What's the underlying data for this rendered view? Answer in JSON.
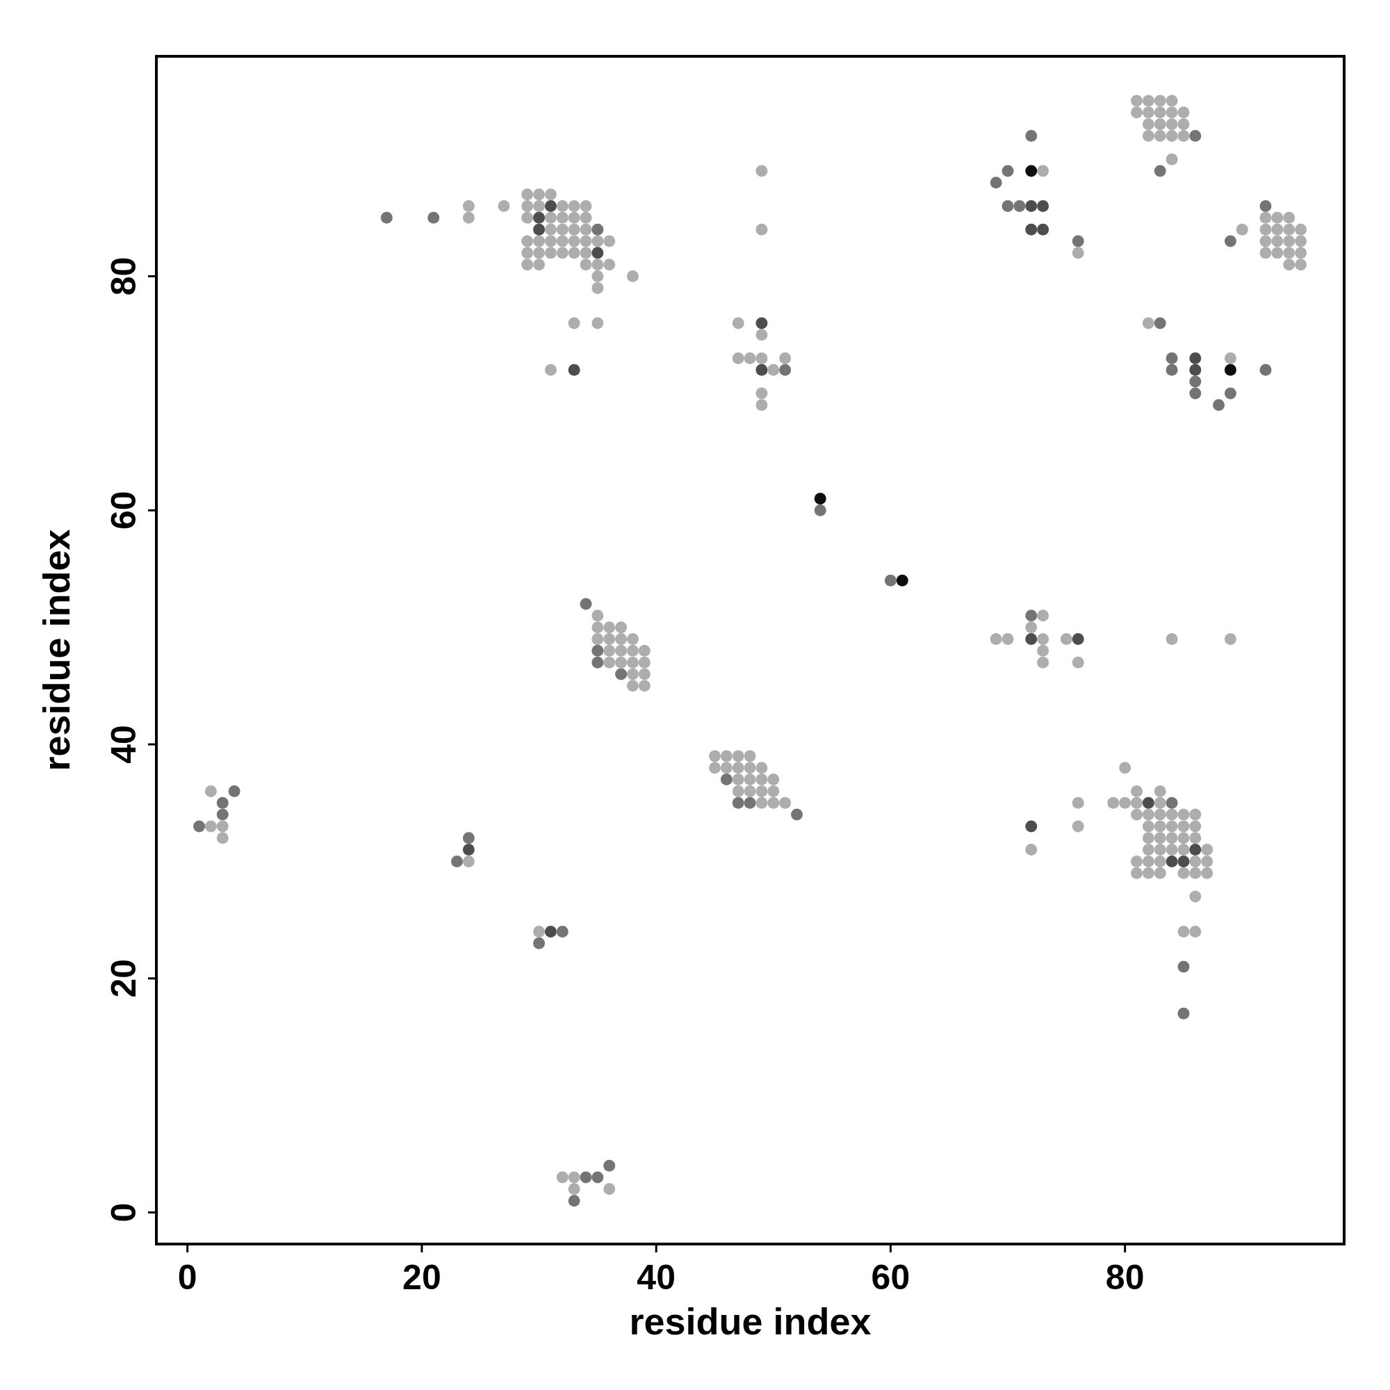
{
  "chart_data": {
    "type": "scatter",
    "xlabel": "residue index",
    "ylabel": "residue index",
    "xlim": [
      -2.65,
      98.7
    ],
    "ylim": [
      -2.7,
      98.8
    ],
    "xticks": [
      0,
      20,
      40,
      60,
      80
    ],
    "yticks": [
      0,
      20,
      40,
      60,
      80
    ],
    "grid": false,
    "marker": "circle",
    "series": [
      {
        "color": "#adadad",
        "x": [
          2,
          2,
          3,
          3,
          24,
          30,
          32,
          33,
          33,
          36,
          29,
          30,
          31,
          24,
          27,
          29,
          30,
          32,
          33,
          34,
          24,
          29,
          31,
          32,
          33,
          34,
          31,
          32,
          33,
          34,
          29,
          30,
          31,
          32,
          33,
          34,
          35,
          36,
          29,
          30,
          31,
          32,
          33,
          34,
          29,
          30,
          34,
          35,
          36,
          35,
          38,
          35,
          33,
          35,
          31,
          49,
          49,
          47,
          49,
          47,
          48,
          49,
          51,
          50,
          49,
          49,
          73,
          76,
          81,
          82,
          83,
          84,
          81,
          82,
          83,
          84,
          85,
          82,
          83,
          84,
          85,
          82,
          83,
          84,
          85,
          84,
          92,
          93,
          94,
          90,
          92,
          93,
          94,
          95,
          92,
          93,
          94,
          95,
          92,
          93,
          94,
          95,
          94,
          95,
          82,
          89,
          35,
          35,
          36,
          37,
          35,
          36,
          37,
          38,
          36,
          37,
          38,
          39,
          36,
          37,
          38,
          39,
          38,
          39,
          38,
          39,
          45,
          46,
          47,
          48,
          45,
          46,
          47,
          48,
          49,
          47,
          48,
          49,
          50,
          47,
          48,
          49,
          50,
          49,
          50,
          51,
          73,
          72,
          69,
          70,
          73,
          75,
          84,
          89,
          73,
          73,
          76,
          80,
          81,
          83,
          79,
          80,
          81,
          83,
          76,
          76,
          72,
          81,
          82,
          83,
          84,
          85,
          86,
          82,
          83,
          84,
          85,
          86,
          82,
          83,
          84,
          85,
          86,
          82,
          83,
          84,
          85,
          87,
          81,
          82,
          83,
          86,
          87,
          81,
          82,
          83,
          85,
          86,
          87,
          86,
          85,
          86
        ],
        "values": [
          36,
          33,
          33,
          32,
          30,
          24,
          3,
          3,
          2,
          2,
          87,
          87,
          87,
          86,
          86,
          86,
          86,
          86,
          86,
          86,
          85,
          85,
          85,
          85,
          85,
          85,
          84,
          84,
          84,
          84,
          83,
          83,
          83,
          83,
          83,
          83,
          83,
          83,
          82,
          82,
          82,
          82,
          82,
          82,
          81,
          81,
          81,
          81,
          81,
          80,
          80,
          79,
          76,
          76,
          72,
          89,
          84,
          76,
          75,
          73,
          73,
          73,
          73,
          72,
          70,
          69,
          89,
          82,
          95,
          95,
          95,
          95,
          94,
          94,
          94,
          94,
          94,
          93,
          93,
          93,
          93,
          92,
          92,
          92,
          92,
          90,
          85,
          85,
          85,
          84,
          84,
          84,
          84,
          84,
          83,
          83,
          83,
          83,
          82,
          82,
          82,
          82,
          81,
          81,
          76,
          73,
          51,
          50,
          50,
          50,
          49,
          49,
          49,
          49,
          48,
          48,
          48,
          48,
          47,
          47,
          47,
          47,
          46,
          46,
          45,
          45,
          39,
          39,
          39,
          39,
          38,
          38,
          38,
          38,
          38,
          37,
          37,
          37,
          37,
          36,
          36,
          36,
          36,
          35,
          35,
          35,
          51,
          50,
          49,
          49,
          49,
          49,
          49,
          49,
          48,
          47,
          47,
          38,
          36,
          36,
          35,
          35,
          35,
          35,
          35,
          33,
          31,
          34,
          34,
          34,
          34,
          34,
          34,
          33,
          33,
          33,
          33,
          33,
          32,
          32,
          32,
          32,
          32,
          31,
          31,
          31,
          31,
          31,
          30,
          30,
          30,
          30,
          30,
          29,
          29,
          29,
          29,
          29,
          29,
          27,
          24,
          24
        ]
      },
      {
        "color": "#747474",
        "x": [
          4,
          3,
          3,
          1,
          24,
          23,
          32,
          30,
          34,
          35,
          36,
          33,
          17,
          21,
          35,
          51,
          72,
          70,
          69,
          70,
          71,
          76,
          86,
          83,
          92,
          89,
          83,
          84,
          84,
          86,
          86,
          92,
          89,
          88,
          34,
          35,
          35,
          37,
          46,
          47,
          48,
          52,
          72,
          84,
          85,
          85,
          54,
          60
        ],
        "values": [
          36,
          35,
          34,
          33,
          32,
          30,
          24,
          23,
          3,
          3,
          4,
          1,
          85,
          85,
          84,
          72,
          92,
          89,
          88,
          86,
          86,
          83,
          92,
          89,
          86,
          83,
          76,
          73,
          72,
          71,
          70,
          72,
          70,
          69,
          52,
          48,
          47,
          46,
          37,
          35,
          35,
          34,
          51,
          35,
          21,
          17,
          60,
          54
        ]
      },
      {
        "color": "#4d4d4d",
        "x": [
          24,
          31,
          31,
          30,
          30,
          35,
          33,
          49,
          49,
          72,
          73,
          72,
          73,
          86,
          86,
          72,
          76,
          72,
          82,
          86,
          84,
          85
        ],
        "values": [
          31,
          24,
          86,
          85,
          84,
          82,
          72,
          76,
          72,
          86,
          86,
          84,
          84,
          73,
          72,
          49,
          49,
          33,
          35,
          31,
          30,
          30
        ]
      },
      {
        "color": "#0d0d0d",
        "x": [
          72,
          89,
          54,
          61
        ],
        "values": [
          89,
          72,
          61,
          54
        ]
      }
    ]
  }
}
